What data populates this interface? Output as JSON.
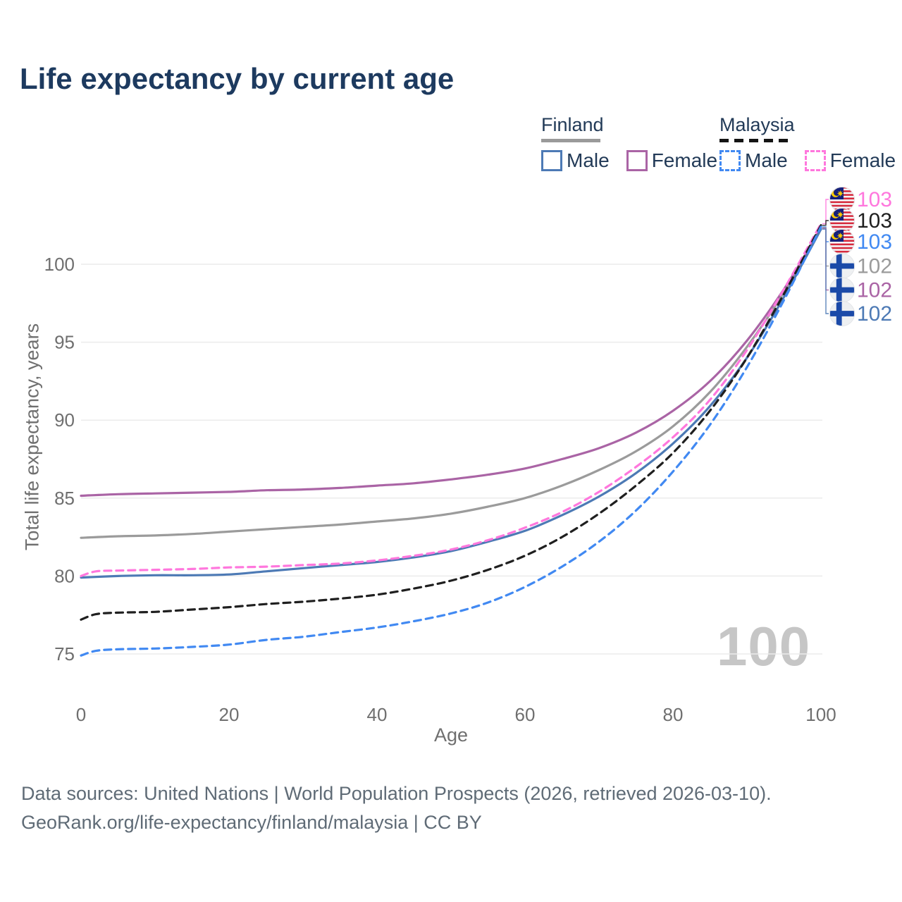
{
  "header": {
    "title": "Life expectancy by current age"
  },
  "legend": {
    "groups": [
      {
        "label": "Finland",
        "line_style": "solid",
        "items": [
          {
            "label": "Male",
            "color": "#4d7ab5"
          },
          {
            "label": "Female",
            "color": "#aa64a5"
          }
        ]
      },
      {
        "label": "Malaysia",
        "line_style": "dashed",
        "items": [
          {
            "label": "Male",
            "color": "#4189f2"
          },
          {
            "label": "Female",
            "color": "#ff77dd"
          }
        ]
      }
    ]
  },
  "chart_data": {
    "type": "line",
    "title": "Life expectancy by current age",
    "xlabel": "Age",
    "ylabel": "Total life expectancy, years",
    "xlim": [
      0,
      100
    ],
    "ylim": [
      73,
      104
    ],
    "xticks": [
      0,
      20,
      40,
      60,
      80,
      100
    ],
    "yticks": [
      75,
      80,
      85,
      90,
      95,
      100
    ],
    "grid": "horizontal",
    "legend_position": "top-right",
    "age_counter": "100",
    "series": [
      {
        "id": "malaysia-female",
        "name": "Malaysia Female",
        "country": "malaysia",
        "sex": "female",
        "line": "dashed",
        "color": "#ff77dd",
        "end_label": "103",
        "points": [
          [
            0,
            80.0
          ],
          [
            2,
            80.3
          ],
          [
            5,
            80.35
          ],
          [
            10,
            80.4
          ],
          [
            15,
            80.45
          ],
          [
            20,
            80.55
          ],
          [
            25,
            80.6
          ],
          [
            30,
            80.7
          ],
          [
            35,
            80.8
          ],
          [
            40,
            81.0
          ],
          [
            45,
            81.3
          ],
          [
            50,
            81.7
          ],
          [
            55,
            82.3
          ],
          [
            60,
            83.1
          ],
          [
            65,
            84.1
          ],
          [
            70,
            85.4
          ],
          [
            75,
            87.0
          ],
          [
            80,
            88.9
          ],
          [
            85,
            91.3
          ],
          [
            90,
            94.5
          ],
          [
            95,
            98.4
          ],
          [
            100,
            102.6
          ]
        ]
      },
      {
        "id": "malaysia-total",
        "name": "Malaysia Both sexes",
        "country": "malaysia",
        "sex": "both",
        "line": "dashed",
        "color": "#1f1f1f",
        "end_label": "103",
        "points": [
          [
            0,
            77.2
          ],
          [
            2,
            77.55
          ],
          [
            5,
            77.65
          ],
          [
            10,
            77.7
          ],
          [
            15,
            77.85
          ],
          [
            20,
            78.0
          ],
          [
            25,
            78.2
          ],
          [
            30,
            78.35
          ],
          [
            35,
            78.55
          ],
          [
            40,
            78.8
          ],
          [
            45,
            79.2
          ],
          [
            50,
            79.7
          ],
          [
            55,
            80.4
          ],
          [
            60,
            81.3
          ],
          [
            65,
            82.5
          ],
          [
            70,
            84.0
          ],
          [
            75,
            85.8
          ],
          [
            80,
            87.9
          ],
          [
            85,
            90.6
          ],
          [
            90,
            94.0
          ],
          [
            95,
            98.1
          ],
          [
            100,
            102.5
          ]
        ]
      },
      {
        "id": "malaysia-male",
        "name": "Malaysia Male",
        "country": "malaysia",
        "sex": "male",
        "line": "dashed",
        "color": "#4189f2",
        "end_label": "103",
        "points": [
          [
            0,
            74.9
          ],
          [
            2,
            75.2
          ],
          [
            5,
            75.3
          ],
          [
            10,
            75.35
          ],
          [
            15,
            75.45
          ],
          [
            20,
            75.6
          ],
          [
            25,
            75.9
          ],
          [
            30,
            76.1
          ],
          [
            35,
            76.4
          ],
          [
            40,
            76.7
          ],
          [
            45,
            77.1
          ],
          [
            50,
            77.6
          ],
          [
            55,
            78.3
          ],
          [
            60,
            79.3
          ],
          [
            65,
            80.6
          ],
          [
            70,
            82.2
          ],
          [
            75,
            84.2
          ],
          [
            80,
            86.7
          ],
          [
            85,
            89.7
          ],
          [
            90,
            93.4
          ],
          [
            95,
            97.7
          ],
          [
            100,
            102.4
          ]
        ]
      },
      {
        "id": "finland-total",
        "name": "Finland Both sexes",
        "country": "finland",
        "sex": "both",
        "line": "solid",
        "color": "#9b9b9b",
        "end_label": "102",
        "points": [
          [
            0,
            82.45
          ],
          [
            5,
            82.55
          ],
          [
            10,
            82.6
          ],
          [
            15,
            82.7
          ],
          [
            20,
            82.85
          ],
          [
            25,
            83.0
          ],
          [
            30,
            83.15
          ],
          [
            35,
            83.3
          ],
          [
            40,
            83.5
          ],
          [
            45,
            83.7
          ],
          [
            50,
            84.0
          ],
          [
            55,
            84.45
          ],
          [
            60,
            85.0
          ],
          [
            65,
            85.8
          ],
          [
            70,
            86.8
          ],
          [
            75,
            88.0
          ],
          [
            80,
            89.6
          ],
          [
            85,
            91.8
          ],
          [
            90,
            94.7
          ],
          [
            95,
            98.2
          ],
          [
            100,
            102.35
          ]
        ]
      },
      {
        "id": "finland-female",
        "name": "Finland Female",
        "country": "finland",
        "sex": "female",
        "line": "solid",
        "color": "#aa64a5",
        "end_label": "102",
        "points": [
          [
            0,
            85.15
          ],
          [
            5,
            85.25
          ],
          [
            10,
            85.3
          ],
          [
            15,
            85.35
          ],
          [
            20,
            85.4
          ],
          [
            25,
            85.5
          ],
          [
            30,
            85.55
          ],
          [
            35,
            85.65
          ],
          [
            40,
            85.8
          ],
          [
            45,
            85.95
          ],
          [
            50,
            86.2
          ],
          [
            55,
            86.5
          ],
          [
            60,
            86.9
          ],
          [
            65,
            87.5
          ],
          [
            70,
            88.2
          ],
          [
            75,
            89.2
          ],
          [
            80,
            90.6
          ],
          [
            85,
            92.5
          ],
          [
            90,
            95.1
          ],
          [
            95,
            98.4
          ],
          [
            100,
            102.3
          ]
        ]
      },
      {
        "id": "finland-male",
        "name": "Finland Male",
        "country": "finland",
        "sex": "male",
        "line": "solid",
        "color": "#4d7ab5",
        "end_label": "102",
        "points": [
          [
            0,
            79.9
          ],
          [
            5,
            80.0
          ],
          [
            10,
            80.05
          ],
          [
            15,
            80.05
          ],
          [
            20,
            80.1
          ],
          [
            25,
            80.3
          ],
          [
            30,
            80.5
          ],
          [
            35,
            80.7
          ],
          [
            40,
            80.9
          ],
          [
            45,
            81.2
          ],
          [
            50,
            81.6
          ],
          [
            55,
            82.2
          ],
          [
            60,
            82.9
          ],
          [
            65,
            83.9
          ],
          [
            70,
            85.1
          ],
          [
            75,
            86.6
          ],
          [
            80,
            88.5
          ],
          [
            85,
            90.9
          ],
          [
            90,
            94.0
          ],
          [
            95,
            97.9
          ],
          [
            100,
            102.25
          ]
        ]
      }
    ],
    "colors": {
      "title_text": "#1d3a5f",
      "tick_text": "#6f6f6f",
      "gridline": "#ebebeb",
      "watermark": "#c6c6c6",
      "footer_text": "#5f6b76",
      "finland_flag_blue": "#1b4aa8",
      "malaysia_flag_red": "#d62a3d",
      "malaysia_flag_blue": "#15207a",
      "malaysia_flag_yellow": "#ffcc00"
    }
  },
  "footer": {
    "line1": "Data sources: United Nations | World Population Prospects (2026, retrieved 2026-03-10).",
    "line2": "GeoRank.org/life-expectancy/finland/malaysia | CC BY"
  }
}
